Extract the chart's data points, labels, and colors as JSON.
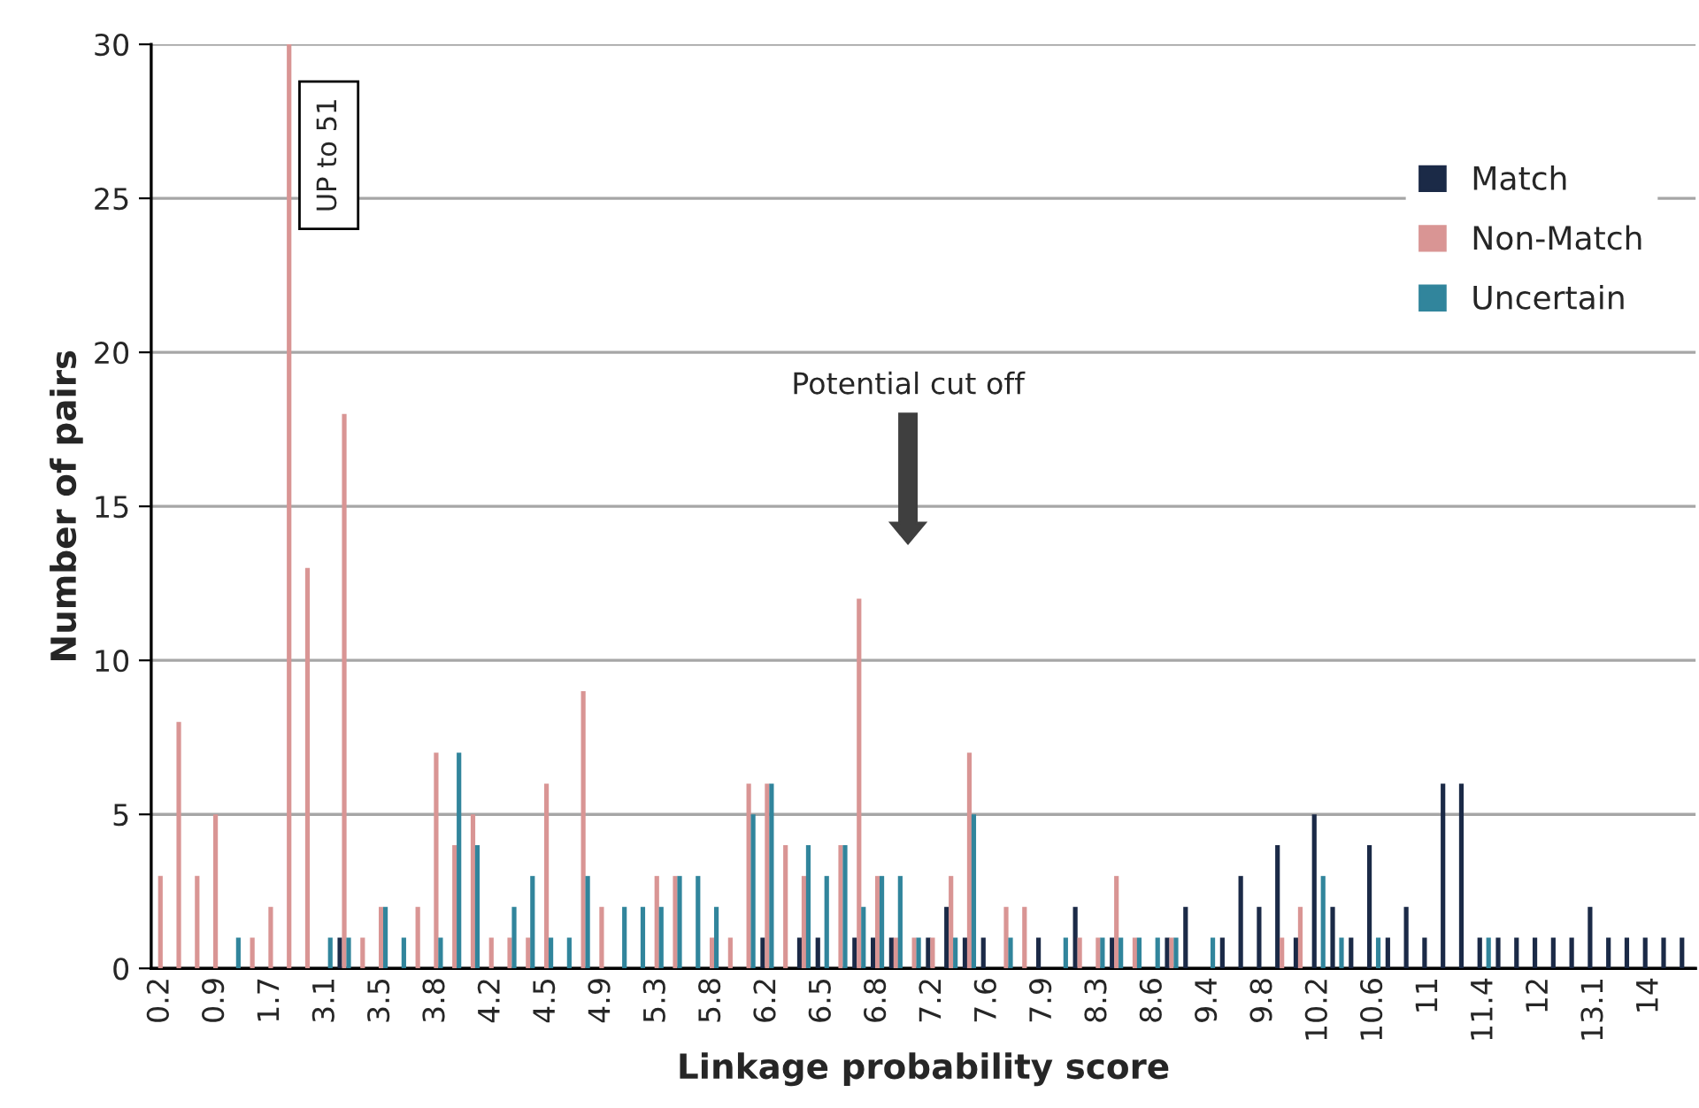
{
  "chart_data": {
    "type": "bar",
    "xlabel": "Linkage probability score",
    "ylabel": "Number of pairs",
    "categories": [
      "0.2",
      null,
      null,
      "0.9",
      null,
      null,
      "1.7",
      null,
      null,
      "3.1",
      null,
      null,
      "3.5",
      null,
      null,
      "3.8",
      null,
      null,
      "4.2",
      null,
      null,
      "4.5",
      null,
      null,
      "4.9",
      null,
      null,
      "5.3",
      null,
      null,
      "5.8",
      null,
      null,
      "6.2",
      null,
      null,
      "6.5",
      null,
      null,
      "6.8",
      null,
      null,
      "7.2",
      null,
      null,
      "7.6",
      null,
      null,
      "7.9",
      null,
      null,
      "8.3",
      null,
      null,
      "8.6",
      null,
      null,
      "9.4",
      null,
      null,
      "9.8",
      null,
      null,
      "10.2",
      null,
      null,
      "10.6",
      null,
      null,
      "11",
      null,
      null,
      "11.4",
      null,
      null,
      "12",
      null,
      null,
      "13.1",
      null,
      null,
      "14",
      null,
      null
    ],
    "series": [
      {
        "name": "Match",
        "color": "#1b2a47",
        "values": [
          null,
          null,
          null,
          null,
          null,
          null,
          null,
          null,
          null,
          null,
          1,
          null,
          null,
          null,
          null,
          null,
          null,
          null,
          null,
          null,
          null,
          null,
          null,
          null,
          null,
          null,
          null,
          null,
          null,
          null,
          null,
          null,
          null,
          1,
          null,
          1,
          1,
          null,
          1,
          1,
          1,
          null,
          1,
          2,
          1,
          1,
          null,
          null,
          1,
          null,
          2,
          null,
          1,
          null,
          null,
          1,
          2,
          null,
          1,
          3,
          2,
          4,
          1,
          5,
          2,
          1,
          4,
          1,
          2,
          1,
          6,
          6,
          1,
          1,
          1,
          1,
          1,
          1,
          2,
          1,
          1,
          1,
          1,
          1
        ]
      },
      {
        "name": "Non-Match",
        "color": "#d99594",
        "values": [
          3,
          8,
          3,
          5,
          null,
          1,
          2,
          30,
          13,
          null,
          18,
          1,
          2,
          null,
          2,
          7,
          4,
          5,
          1,
          1,
          1,
          6,
          null,
          9,
          2,
          null,
          null,
          3,
          3,
          null,
          1,
          1,
          6,
          6,
          4,
          3,
          null,
          4,
          12,
          3,
          1,
          1,
          1,
          3,
          7,
          null,
          2,
          2,
          null,
          null,
          1,
          1,
          3,
          1,
          null,
          1,
          null,
          null,
          null,
          null,
          null,
          1,
          2,
          null,
          null,
          null,
          null,
          null,
          null,
          null,
          null,
          null,
          null,
          null,
          null,
          null,
          null,
          null,
          null,
          null,
          null,
          null,
          null,
          null
        ]
      },
      {
        "name": "Uncertain",
        "color": "#31859c",
        "values": [
          null,
          null,
          null,
          null,
          1,
          null,
          null,
          null,
          null,
          1,
          1,
          null,
          2,
          1,
          null,
          1,
          7,
          4,
          null,
          2,
          3,
          1,
          1,
          3,
          null,
          2,
          2,
          2,
          3,
          3,
          2,
          null,
          5,
          6,
          null,
          4,
          3,
          4,
          2,
          3,
          3,
          1,
          null,
          1,
          5,
          null,
          1,
          null,
          null,
          1,
          null,
          1,
          1,
          1,
          1,
          1,
          null,
          1,
          null,
          null,
          null,
          null,
          null,
          3,
          1,
          null,
          1,
          null,
          null,
          null,
          null,
          null,
          1,
          null,
          null,
          null,
          null,
          null,
          null,
          null,
          null,
          null,
          null,
          null
        ]
      }
    ],
    "ylim": [
      0,
      30
    ],
    "yticks": [
      0,
      5,
      10,
      15,
      20,
      25,
      30
    ],
    "grid": "y",
    "legend": "top right",
    "annotations": [
      "UP to 51",
      "Potential cut off"
    ]
  }
}
